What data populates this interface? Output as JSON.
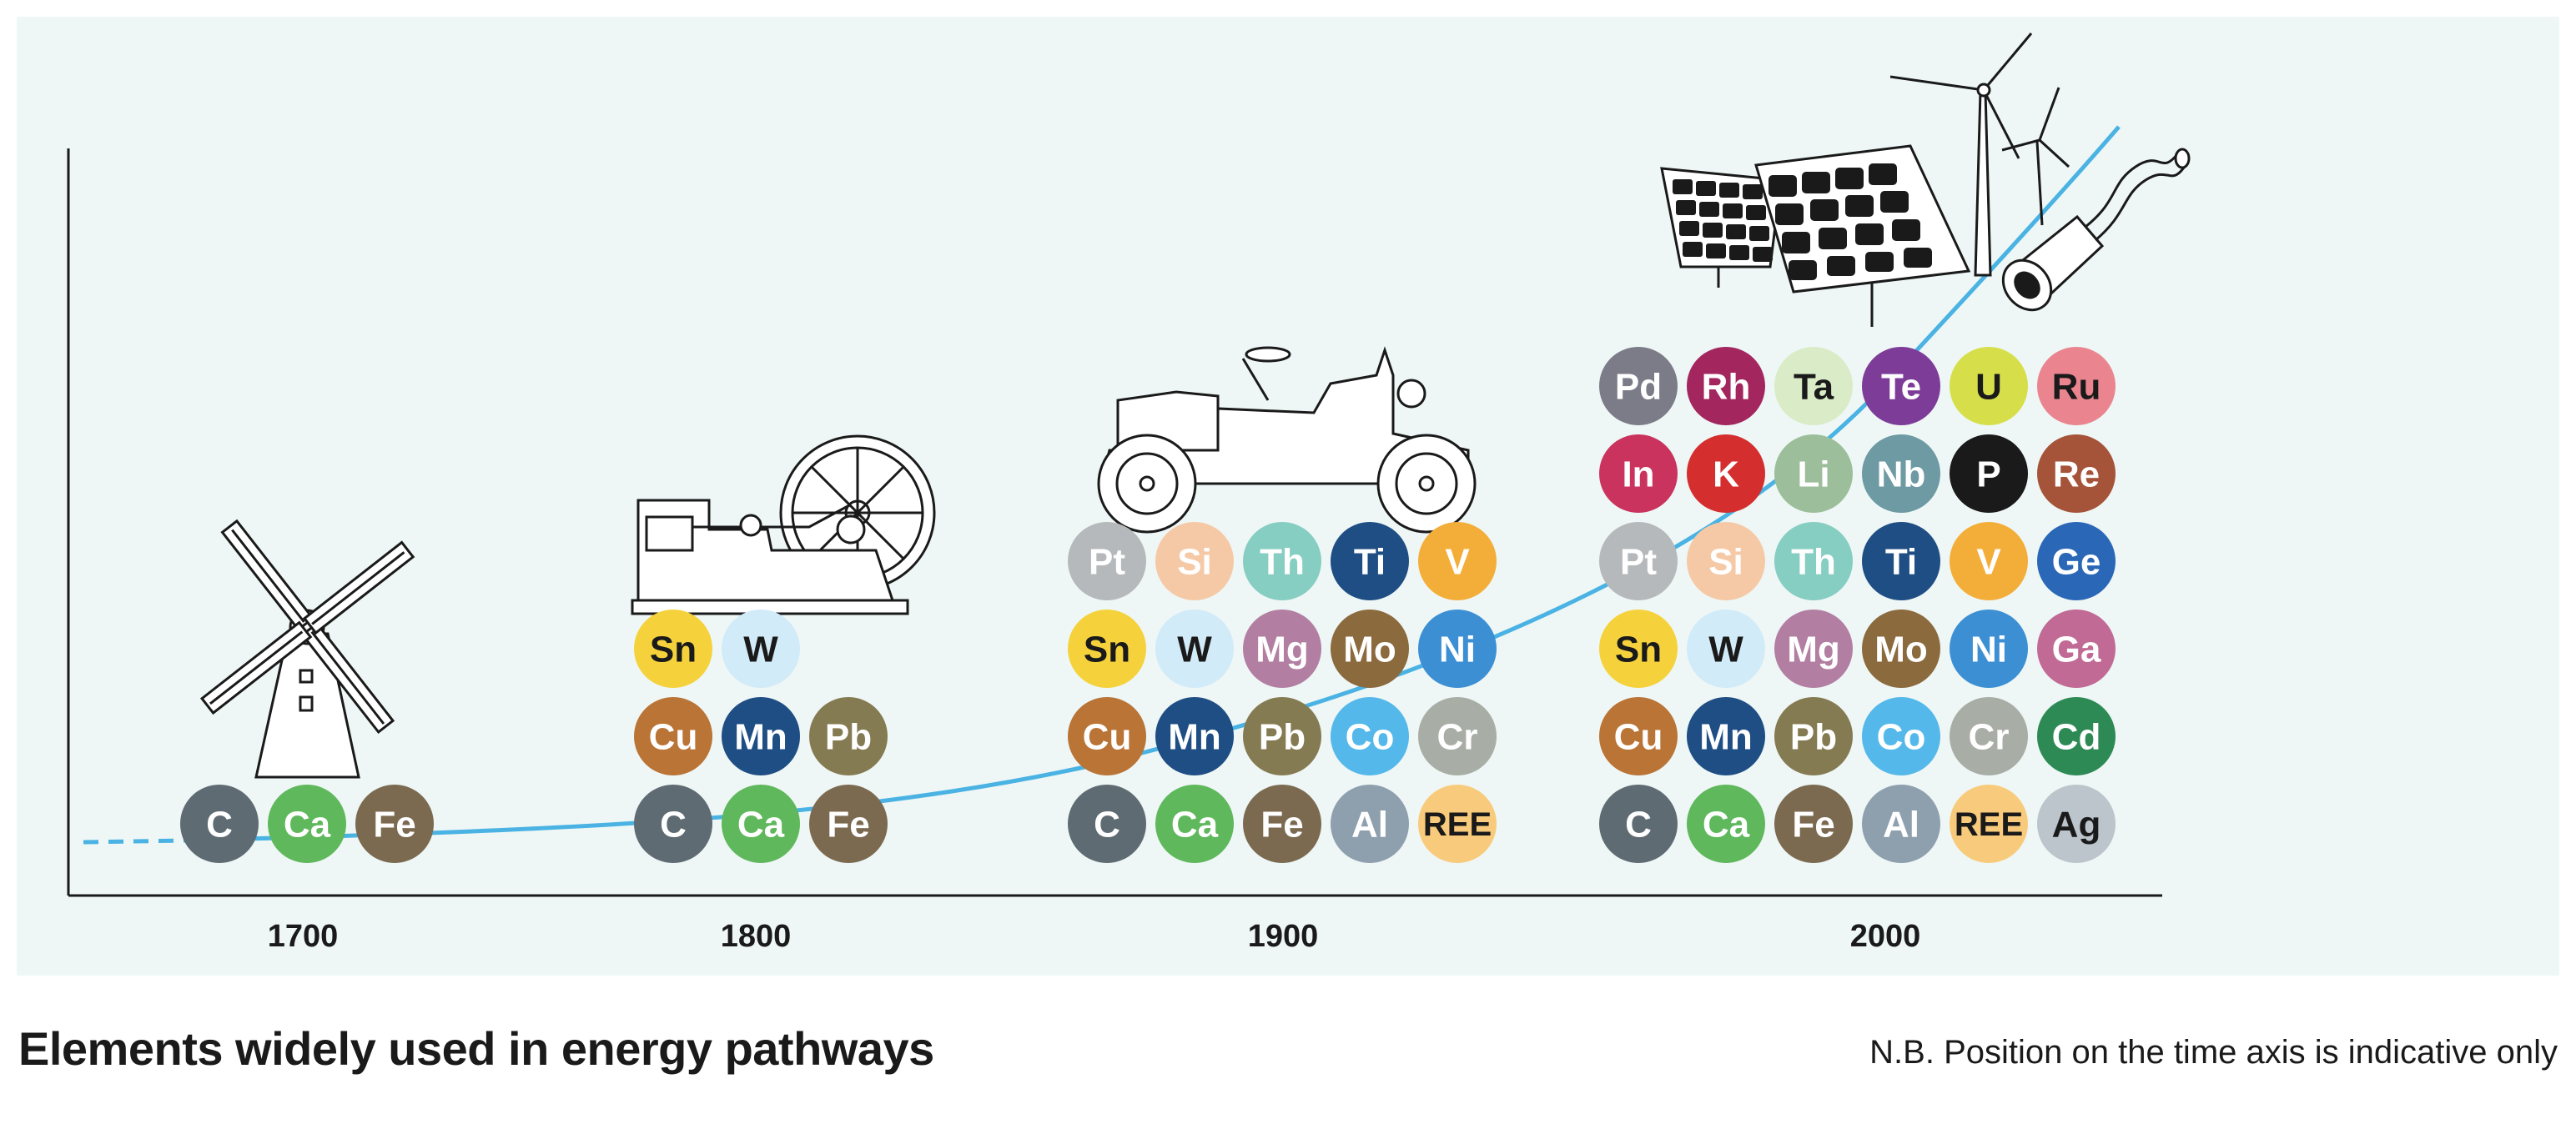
{
  "caption": "Elements widely used in energy pathways",
  "note": "N.B. Position on the time axis is indicative only",
  "colors": {
    "background": "#eef7f6",
    "curve": "#4ab3e3",
    "axis": "#1a1a1a"
  },
  "time_axis": {
    "labels": [
      "1700",
      "1800",
      "1900",
      "2000"
    ]
  },
  "illustrations": {
    "1700": "windmill-icon",
    "1800": "steam-engine-icon",
    "1900": "vintage-car-icon",
    "2000": [
      "solar-panel-icon",
      "wind-turbine-icon",
      "catalytic-converter-icon"
    ]
  },
  "groups": [
    {
      "era": "1700",
      "rows": [
        [
          "C",
          "Ca",
          "Fe"
        ]
      ]
    },
    {
      "era": "1800",
      "rows": [
        [
          "Sn",
          "W"
        ],
        [
          "Cu",
          "Mn",
          "Pb"
        ],
        [
          "C",
          "Ca",
          "Fe"
        ]
      ]
    },
    {
      "era": "1900",
      "rows": [
        [
          "Pt",
          "Si",
          "Th",
          "Ti",
          "V"
        ],
        [
          "Sn",
          "W",
          "Mg",
          "Mo",
          "Ni"
        ],
        [
          "Cu",
          "Mn",
          "Pb",
          "Co",
          "Cr"
        ],
        [
          "C",
          "Ca",
          "Fe",
          "Al",
          "REE"
        ]
      ]
    },
    {
      "era": "2000",
      "rows": [
        [
          "Pd",
          "Rh",
          "Ta",
          "Te",
          "U",
          "Ru"
        ],
        [
          "In",
          "K",
          "Li",
          "Nb",
          "P",
          "Re"
        ],
        [
          "Pt",
          "Si",
          "Th",
          "Ti",
          "V",
          "Ge"
        ],
        [
          "Sn",
          "W",
          "Mg",
          "Mo",
          "Ni",
          "Ga"
        ],
        [
          "Cu",
          "Mn",
          "Pb",
          "Co",
          "Cr",
          "Cd"
        ],
        [
          "C",
          "Ca",
          "Fe",
          "Al",
          "REE",
          "Ag"
        ]
      ]
    }
  ],
  "element_colors": {
    "C": {
      "fill": "#5f6b73",
      "text": "#ffffff"
    },
    "Ca": {
      "fill": "#5fb85c",
      "text": "#ffffff"
    },
    "Fe": {
      "fill": "#7b6a50",
      "text": "#ffffff"
    },
    "Sn": {
      "fill": "#f5d23c",
      "text": "#1a1a1a"
    },
    "W": {
      "fill": "#d2ebf8",
      "text": "#1a1a1a"
    },
    "Cu": {
      "fill": "#b97436",
      "text": "#ffffff"
    },
    "Mn": {
      "fill": "#1f4e84",
      "text": "#ffffff"
    },
    "Pb": {
      "fill": "#857b52",
      "text": "#ffffff"
    },
    "Pt": {
      "fill": "#b6b9bb",
      "text": "#ffffff"
    },
    "Si": {
      "fill": "#f6c9a6",
      "text": "#ffffff"
    },
    "Th": {
      "fill": "#86cdc2",
      "text": "#ffffff"
    },
    "Ti": {
      "fill": "#1f4e84",
      "text": "#ffffff"
    },
    "V": {
      "fill": "#f3ae3a",
      "text": "#ffffff"
    },
    "Mg": {
      "fill": "#b27fa3",
      "text": "#ffffff"
    },
    "Mo": {
      "fill": "#8b6a3d",
      "text": "#ffffff"
    },
    "Ni": {
      "fill": "#3d8fd4",
      "text": "#ffffff"
    },
    "Co": {
      "fill": "#55b8ea",
      "text": "#ffffff"
    },
    "Cr": {
      "fill": "#a8aea6",
      "text": "#ffffff"
    },
    "Al": {
      "fill": "#8e9fae",
      "text": "#ffffff"
    },
    "REE": {
      "fill": "#f8cb7c",
      "text": "#1a1a1a"
    },
    "Pd": {
      "fill": "#7c7b88",
      "text": "#ffffff"
    },
    "Rh": {
      "fill": "#a3265e",
      "text": "#ffffff"
    },
    "Ta": {
      "fill": "#d9ecc7",
      "text": "#1a1a1a"
    },
    "Te": {
      "fill": "#7d3c98",
      "text": "#ffffff"
    },
    "U": {
      "fill": "#d6df4a",
      "text": "#1a1a1a"
    },
    "Ru": {
      "fill": "#ea858f",
      "text": "#1a1a1a"
    },
    "In": {
      "fill": "#c9335e",
      "text": "#ffffff"
    },
    "K": {
      "fill": "#d42e2e",
      "text": "#ffffff"
    },
    "Li": {
      "fill": "#9cbe9a",
      "text": "#ffffff"
    },
    "Nb": {
      "fill": "#6d9aa3",
      "text": "#ffffff"
    },
    "P": {
      "fill": "#1a1a1a",
      "text": "#ffffff"
    },
    "Re": {
      "fill": "#a5543a",
      "text": "#ffffff"
    },
    "Ge": {
      "fill": "#2a67b7",
      "text": "#ffffff"
    },
    "Ga": {
      "fill": "#c06a95",
      "text": "#ffffff"
    },
    "Cd": {
      "fill": "#2e8a55",
      "text": "#ffffff"
    },
    "Ag": {
      "fill": "#bcc4cc",
      "text": "#1a1a1a"
    }
  }
}
